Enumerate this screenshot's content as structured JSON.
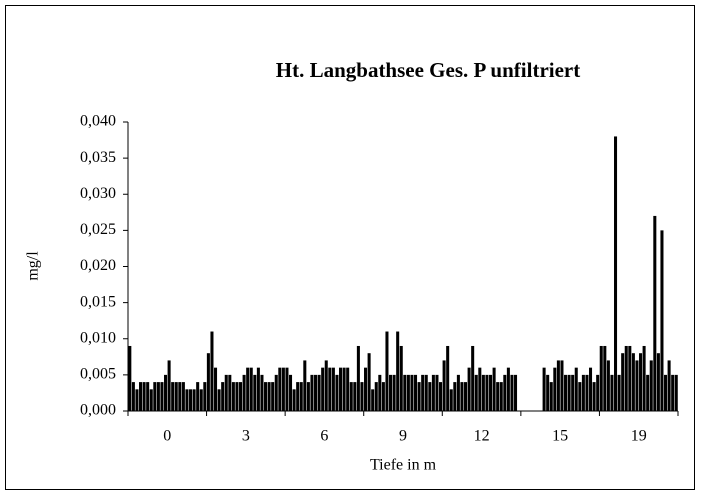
{
  "chart_data": {
    "type": "bar",
    "title": "Ht. Langbathsee  Ges. P unfiltriert",
    "x_label": "Tiefe in m",
    "y_label": "mg/l",
    "categories": [
      "0",
      "3",
      "6",
      "9",
      "12",
      "15",
      "19"
    ],
    "color": "#000000",
    "values": [
      [
        0.009,
        0.004,
        0.003,
        0.004,
        0.004,
        0.004,
        0.003,
        0.004,
        0.004,
        0.004,
        0.005,
        0.007,
        0.004,
        0.004,
        0.004,
        0.004,
        0.003,
        0.003,
        0.003,
        0.004,
        0.003,
        0.004
      ],
      [
        0.008,
        0.011,
        0.006,
        0.003,
        0.004,
        0.005,
        0.005,
        0.004,
        0.004,
        0.004,
        0.005,
        0.006,
        0.006,
        0.005,
        0.006,
        0.005,
        0.004,
        0.004,
        0.004,
        0.005,
        0.006,
        0.006
      ],
      [
        0.006,
        0.005,
        0.003,
        0.004,
        0.004,
        0.007,
        0.004,
        0.005,
        0.005,
        0.005,
        0.006,
        0.007,
        0.006,
        0.006,
        0.005,
        0.006,
        0.006,
        0.006,
        0.004,
        0.004,
        0.009,
        0.004
      ],
      [
        0.006,
        0.008,
        0.003,
        0.004,
        0.005,
        0.004,
        0.011,
        0.005,
        0.005,
        0.011,
        0.009,
        0.005,
        0.005,
        0.005,
        0.005,
        0.004,
        0.005,
        0.005,
        0.004,
        0.005,
        0.005,
        0.004
      ],
      [
        0.007,
        0.009,
        0.003,
        0.004,
        0.005,
        0.004,
        0.004,
        0.006,
        0.009,
        0.005,
        0.006,
        0.005,
        0.005,
        0.005,
        0.006,
        0.004,
        0.004,
        0.005,
        0.006,
        0.005,
        0.005,
        null
      ],
      [
        null,
        null,
        null,
        null,
        null,
        null,
        0.006,
        0.005,
        0.004,
        0.006,
        0.007,
        0.007,
        0.005,
        0.005,
        0.005,
        0.006,
        0.004,
        0.005,
        0.005,
        0.006,
        0.004,
        0.005
      ],
      [
        0.009,
        0.009,
        0.007,
        0.005,
        0.038,
        0.005,
        0.008,
        0.009,
        0.009,
        0.008,
        0.007,
        0.008,
        0.009,
        0.005,
        0.007,
        0.027,
        0.008,
        0.025,
        0.005,
        0.007,
        0.005,
        0.005
      ]
    ],
    "ylim": [
      0,
      0.04
    ],
    "yticks": [
      {
        "value": 0,
        "label": "0,000"
      },
      {
        "value": 0.005,
        "label": "0,005"
      },
      {
        "value": 0.01,
        "label": "0,010"
      },
      {
        "value": 0.015,
        "label": "0,015"
      },
      {
        "value": 0.02,
        "label": "0,020"
      },
      {
        "value": 0.025,
        "label": "0,025"
      },
      {
        "value": 0.03,
        "label": "0,030"
      },
      {
        "value": 0.035,
        "label": "0,035"
      },
      {
        "value": 0.04,
        "label": "0,040"
      }
    ],
    "grid": false
  }
}
